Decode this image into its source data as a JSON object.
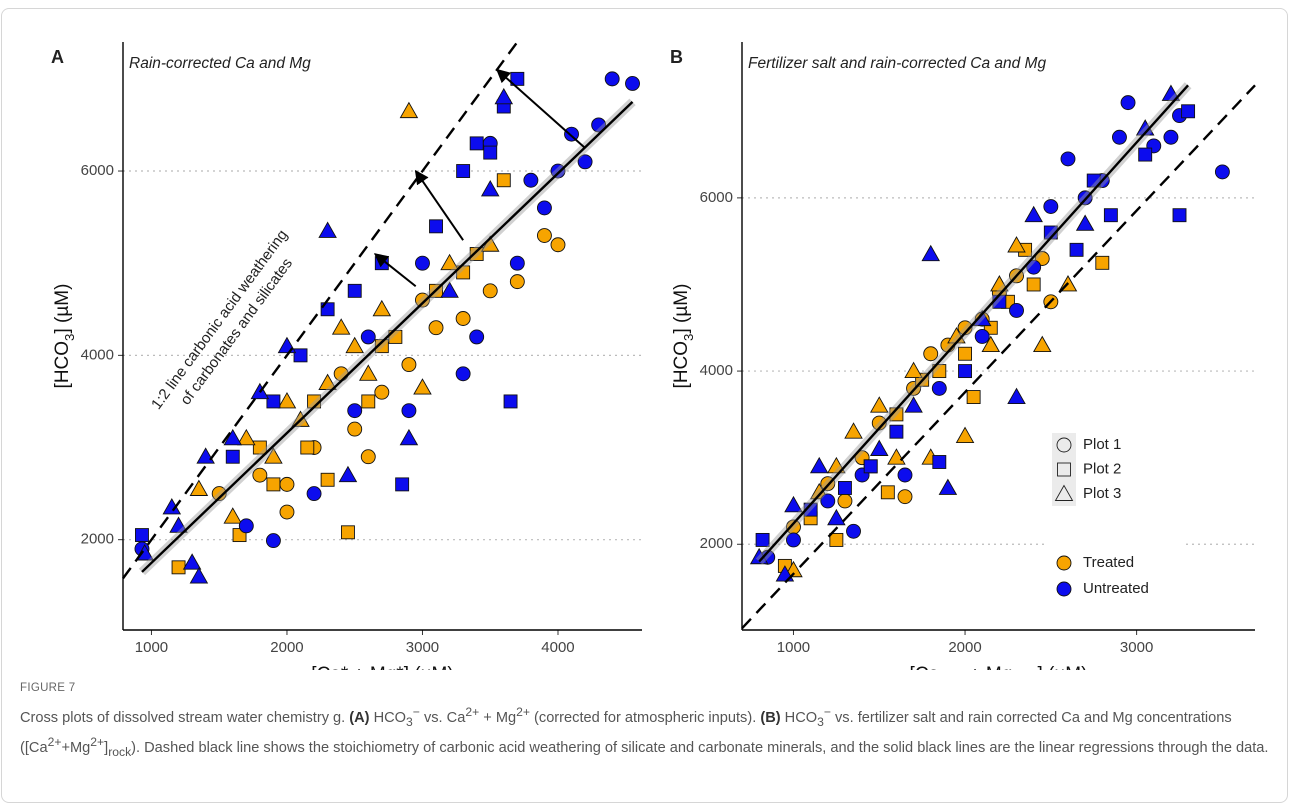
{
  "figure": {
    "label": "FIGURE 7",
    "caption": [
      {
        "t": "Cross plots of dissolved stream water chemistry g. "
      },
      {
        "b": "(A)"
      },
      {
        "t": " HCO"
      },
      {
        "sub": "3"
      },
      {
        "sup": "−"
      },
      {
        "t": " vs. Ca"
      },
      {
        "sup": "2+"
      },
      {
        "t": " + Mg"
      },
      {
        "sup": "2+"
      },
      {
        "t": " (corrected for atmospheric inputs). "
      },
      {
        "b": "(B)"
      },
      {
        "t": " HCO"
      },
      {
        "sub": "3"
      },
      {
        "sup": "−"
      },
      {
        "t": " vs. fertilizer salt and rain corrected Ca and Mg concentrations ([Ca"
      },
      {
        "sup": "2+"
      },
      {
        "t": "+Mg"
      },
      {
        "sup": "2+"
      },
      {
        "t": "]"
      },
      {
        "sub": "rock"
      },
      {
        "t": "). Dashed black line shows the stoichiometry of carbonic acid weathering of silicate and carbonate minerals, and the solid black lines are the linear regressions through the data."
      }
    ]
  },
  "chart_data": [
    {
      "type": "scatter",
      "panel": "A",
      "subtitle": "Rain-corrected Ca and Mg",
      "x_label": [
        {
          "t": "[Ca* + Mg*] (µM)"
        }
      ],
      "y_label": [
        {
          "t": "[HCO"
        },
        {
          "sub": "3"
        },
        {
          "t": "] (µM)"
        }
      ],
      "xlim": [
        790,
        4620
      ],
      "ylim": [
        1020,
        7400
      ],
      "xticks": [
        1000,
        2000,
        3000,
        4000
      ],
      "yticks": [
        2000,
        4000,
        6000
      ],
      "grid": true,
      "annotation": [
        "1:2 line carbonic acid weathering",
        "of carbonates and silicates"
      ],
      "regression": {
        "x": [
          930,
          4550
        ],
        "y": [
          1650,
          6750
        ]
      },
      "reference_line": {
        "x": [
          790,
          3700
        ],
        "y": [
          1580,
          7400
        ]
      },
      "arrows": [
        {
          "x": [
            4200,
            3550
          ],
          "y": [
            6250,
            7100
          ]
        },
        {
          "x": [
            3300,
            2950
          ],
          "y": [
            5250,
            6000
          ]
        },
        {
          "x": [
            2950,
            2650
          ],
          "y": [
            4750,
            5100
          ]
        }
      ],
      "series": [
        {
          "marker": "circle",
          "color": "#f7a400",
          "x": [
            1500,
            1800,
            2000,
            2200,
            2500,
            2700,
            2900,
            3100,
            3300,
            3500,
            3700,
            3900,
            4000,
            2600,
            2000,
            3000,
            2400
          ],
          "values": [
            2500,
            2700,
            2300,
            3000,
            3200,
            3600,
            3900,
            4300,
            4400,
            4700,
            4800,
            5300,
            5200,
            2900,
            2600,
            4600,
            3800
          ]
        },
        {
          "marker": "square",
          "color": "#f7a400",
          "x": [
            1200,
            1650,
            1900,
            2150,
            2300,
            2450,
            2600,
            2800,
            3100,
            3300,
            3400,
            2200,
            1800,
            2700,
            3600
          ],
          "values": [
            1700,
            2050,
            2600,
            3000,
            2650,
            2080,
            3500,
            4200,
            4700,
            4900,
            5100,
            3500,
            3000,
            4100,
            5900
          ]
        },
        {
          "marker": "triangle",
          "color": "#f7a400",
          "x": [
            1350,
            1600,
            1900,
            2100,
            2300,
            2500,
            2700,
            2900,
            3000,
            3200,
            2000,
            2400,
            1700,
            3500,
            2600
          ],
          "values": [
            2550,
            2250,
            2900,
            3300,
            3700,
            4100,
            4500,
            6650,
            3650,
            5000,
            3500,
            4300,
            3100,
            5200,
            3800
          ]
        },
        {
          "marker": "circle",
          "color": "#0c0cee",
          "x": [
            930,
            1700,
            1900,
            2200,
            2500,
            2900,
            3300,
            3400,
            3700,
            3900,
            4000,
            4100,
            4200,
            4300,
            4400,
            4550,
            3500,
            2600,
            3000,
            3800
          ],
          "values": [
            1900,
            2150,
            1990,
            2500,
            3400,
            3400,
            3800,
            4200,
            5000,
            5600,
            6000,
            6400,
            6100,
            6500,
            7000,
            6950,
            6300,
            4200,
            5000,
            5900
          ]
        },
        {
          "marker": "square",
          "color": "#0c0cee",
          "x": [
            930,
            1600,
            1900,
            2100,
            2300,
            2500,
            2700,
            2850,
            3100,
            3300,
            3400,
            3600,
            3700,
            3650,
            3500
          ],
          "values": [
            2050,
            2900,
            3500,
            4000,
            4500,
            4700,
            5000,
            2600,
            5400,
            6000,
            6300,
            6700,
            7000,
            3500,
            6200
          ]
        },
        {
          "marker": "triangle",
          "color": "#0c0cee",
          "x": [
            950,
            1150,
            1300,
            1350,
            1400,
            1600,
            1800,
            2000,
            2300,
            2450,
            2900,
            3200,
            3500,
            3600,
            1200
          ],
          "values": [
            1850,
            2350,
            1750,
            1600,
            2900,
            3100,
            3600,
            4100,
            5350,
            2700,
            3100,
            4700,
            5800,
            6800,
            2150
          ]
        }
      ]
    },
    {
      "type": "scatter",
      "panel": "B",
      "subtitle": "Fertilizer salt and rain-corrected Ca and Mg",
      "x_label": [
        {
          "t": "[Ca"
        },
        {
          "sub": "rock"
        },
        {
          "t": " + Mg"
        },
        {
          "sub": "rock"
        },
        {
          "t": "] (µM)"
        }
      ],
      "y_label": [
        {
          "t": "[HCO"
        },
        {
          "sub": "3"
        },
        {
          "t": "] (µM)"
        }
      ],
      "xlim": [
        700,
        3690
      ],
      "ylim": [
        1010,
        7800
      ],
      "xticks": [
        1000,
        2000,
        3000
      ],
      "yticks": [
        2000,
        4000,
        6000
      ],
      "grid": true,
      "regression": {
        "x": [
          800,
          3300
        ],
        "y": [
          1800,
          7300
        ]
      },
      "reference_line": {
        "x": [
          700,
          3690
        ],
        "y": [
          1030,
          7300
        ]
      },
      "legend": {
        "position": "right",
        "shapes": [
          {
            "label": "Plot 1",
            "marker": "circle"
          },
          {
            "label": "Plot 2",
            "marker": "square"
          },
          {
            "label": "Plot 3",
            "marker": "triangle"
          }
        ],
        "fills": [
          {
            "label": "Treated",
            "color": "#f7a400"
          },
          {
            "label": "Untreated",
            "color": "#0c0cee"
          }
        ]
      },
      "series": [
        {
          "marker": "circle",
          "color": "#f7a400",
          "x": [
            1000,
            1200,
            1400,
            1500,
            1650,
            1700,
            1800,
            1900,
            2000,
            2100,
            2200,
            2300,
            2450,
            2500,
            1300
          ],
          "values": [
            2200,
            2700,
            3000,
            3400,
            2550,
            3800,
            4200,
            4300,
            4500,
            4600,
            4900,
            5100,
            5300,
            4800,
            2500
          ]
        },
        {
          "marker": "square",
          "color": "#f7a400",
          "x": [
            950,
            1100,
            1250,
            1450,
            1600,
            1750,
            1850,
            2000,
            2150,
            2250,
            2400,
            2800,
            1550,
            2050,
            2350
          ],
          "values": [
            1750,
            2300,
            2050,
            2900,
            3500,
            3900,
            4000,
            4200,
            4500,
            4800,
            5000,
            5250,
            2600,
            3700,
            5400
          ]
        },
        {
          "marker": "triangle",
          "color": "#f7a400",
          "x": [
            1000,
            1150,
            1350,
            1500,
            1700,
            1800,
            1950,
            2000,
            2150,
            2300,
            2450,
            2600,
            1600,
            1250,
            2200
          ],
          "values": [
            1700,
            2600,
            3300,
            3600,
            4000,
            3000,
            4400,
            3250,
            4300,
            5450,
            4300,
            5000,
            3000,
            2900,
            5000
          ]
        },
        {
          "marker": "circle",
          "color": "#0c0cee",
          "x": [
            850,
            1000,
            1200,
            1350,
            1650,
            1850,
            2100,
            2400,
            2500,
            2600,
            2700,
            2900,
            2950,
            3100,
            3250,
            3500,
            1400,
            2300,
            2800,
            3200
          ],
          "values": [
            1850,
            2050,
            2500,
            2150,
            2800,
            3800,
            4400,
            5200,
            5900,
            6450,
            6000,
            6700,
            7100,
            6600,
            6950,
            6300,
            2800,
            4700,
            6200,
            6700
          ]
        },
        {
          "marker": "square",
          "color": "#0c0cee",
          "x": [
            820,
            1100,
            1450,
            1600,
            1850,
            2000,
            2200,
            2500,
            2750,
            2850,
            3050,
            3250,
            3300,
            1300,
            2650
          ],
          "values": [
            2050,
            2400,
            2900,
            3300,
            2950,
            4000,
            4800,
            5600,
            6200,
            5800,
            6500,
            5800,
            7000,
            2650,
            5400
          ]
        },
        {
          "marker": "triangle",
          "color": "#0c0cee",
          "x": [
            800,
            950,
            1000,
            1150,
            1250,
            1500,
            1800,
            1900,
            2100,
            2300,
            2400,
            2700,
            3050,
            3200,
            1700
          ],
          "values": [
            1850,
            1650,
            2450,
            2900,
            2300,
            3100,
            5350,
            2650,
            4600,
            3700,
            5800,
            5700,
            6800,
            7200,
            3600
          ]
        }
      ]
    }
  ]
}
